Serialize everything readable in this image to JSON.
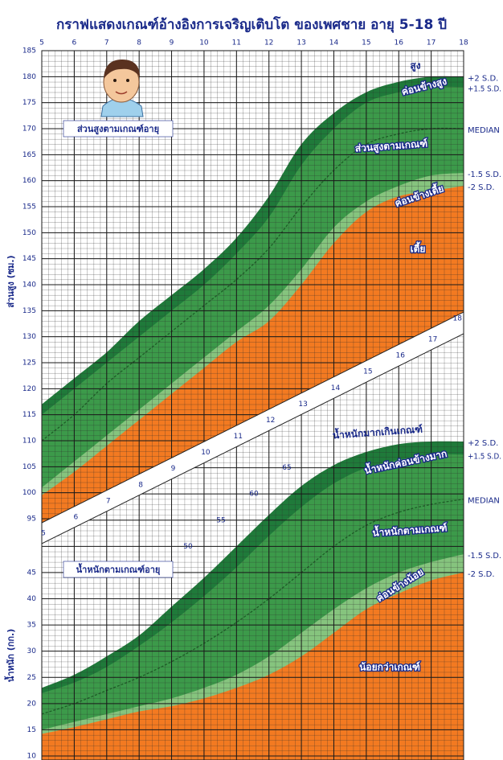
{
  "title": "กราฟแสดงเกณฑ์อ้างอิงการเจริญเติบโต ของเพศชาย อายุ 5-18 ปี",
  "chart_data": [
    {
      "type": "area",
      "title": "ส่วนสูงตามเกณฑ์อายุ",
      "y_label": "ส่วนสูง (ซม.)",
      "x": [
        5,
        6,
        7,
        8,
        9,
        10,
        11,
        12,
        13,
        14,
        15,
        16,
        17,
        18
      ],
      "xlim": [
        5,
        18
      ],
      "xticks": [
        5,
        6,
        7,
        8,
        9,
        10,
        11,
        12,
        13,
        14,
        15,
        16,
        17,
        18
      ],
      "ylim": [
        95,
        185
      ],
      "yticks": [
        95,
        100,
        105,
        110,
        115,
        120,
        125,
        130,
        135,
        140,
        145,
        150,
        155,
        160,
        165,
        170,
        175,
        180,
        185
      ],
      "grid": true,
      "series": [
        {
          "name": "+2 S.D.",
          "color": "#1f7a3a",
          "values": [
            117,
            122,
            127,
            133,
            138,
            143,
            149,
            157,
            167,
            173,
            177,
            179,
            180,
            180
          ]
        },
        {
          "name": "+1.5 S.D.",
          "color": "#3c9a4a",
          "values": [
            115,
            120,
            125,
            130,
            135,
            140,
            146,
            153,
            163,
            170,
            175,
            177,
            178,
            178
          ]
        },
        {
          "name": "MEDIAN",
          "color": "#1d5e26",
          "dashed": true,
          "values": [
            110,
            115,
            121,
            126,
            131,
            136,
            141,
            147,
            155,
            162,
            167,
            169,
            170,
            170
          ]
        },
        {
          "name": "-1.5 S.D.",
          "color": "#86c47e",
          "values": [
            101,
            106,
            111,
            116,
            121,
            126,
            131,
            136,
            143,
            151,
            156,
            159,
            161,
            161.5
          ]
        },
        {
          "name": "-2 S.D.",
          "color": "#f37a21",
          "values": [
            99.5,
            104,
            109,
            114,
            119,
            124,
            129,
            133,
            140,
            148,
            154,
            157,
            158,
            159
          ]
        }
      ],
      "band_labels": [
        "สูง",
        "ค่อนข้างสูง",
        "ส่วนสูงตามเกณฑ์",
        "ค่อนข้างเตี้ย",
        "เตี้ย"
      ]
    },
    {
      "type": "area",
      "title": "น้ำหนักตามเกณฑ์อายุ",
      "y_label": "น้ำหนัก (กก.)",
      "x": [
        5,
        6,
        7,
        8,
        9,
        10,
        11,
        12,
        13,
        14,
        15,
        16,
        17,
        18
      ],
      "xlim": [
        5,
        18
      ],
      "xticks": [
        5,
        6,
        7,
        8,
        9,
        10,
        11,
        12,
        13,
        14,
        15,
        16,
        17,
        18
      ],
      "ylim": [
        10,
        70
      ],
      "yticks": [
        10,
        15,
        20,
        25,
        30,
        35,
        40,
        45,
        50,
        55,
        60,
        65
      ],
      "grid": true,
      "series": [
        {
          "name": "+2 S.D.",
          "color": "#1f7a3a",
          "values": [
            23,
            25.5,
            29,
            33,
            38.5,
            44,
            50,
            56,
            61.5,
            65.5,
            68,
            69.5,
            70,
            70
          ]
        },
        {
          "name": "+1.5 S.D.",
          "color": "#3c9a4a",
          "values": [
            22,
            24,
            27,
            31,
            35.5,
            40.5,
            46,
            52,
            57.5,
            62,
            65,
            66.5,
            67.5,
            67.5
          ]
        },
        {
          "name": "MEDIAN",
          "color": "#1d5e26",
          "dashed": true,
          "values": [
            18,
            20,
            22.5,
            25,
            28,
            31.5,
            35.5,
            40,
            45,
            50,
            54,
            56.5,
            58,
            59
          ]
        },
        {
          "name": "-1.5 S.D.",
          "color": "#86c47e",
          "values": [
            15,
            16.5,
            18,
            19.5,
            21,
            23,
            25.5,
            29,
            33.5,
            38,
            42,
            45,
            47,
            48.5
          ]
        },
        {
          "name": "-2 S.D.",
          "color": "#f37a21",
          "values": [
            14.2,
            15.5,
            17,
            18.5,
            19.5,
            21,
            23,
            25.5,
            29,
            33.5,
            38,
            41,
            43.5,
            45
          ]
        }
      ],
      "band_labels": [
        "น้ำหนักมากเกินเกณฑ์",
        "น้ำหนักค่อนข้างมาก",
        "น้ำหนักตามเกณฑ์",
        "ค่อนข้างน้อย",
        "น้อยกว่าเกณฑ์"
      ]
    }
  ]
}
